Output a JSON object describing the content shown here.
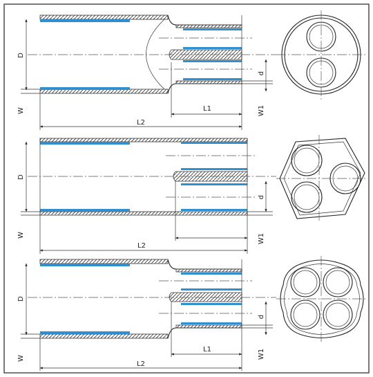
{
  "colors": {
    "liner": "#2f8fd0",
    "line": "#222222",
    "background": "#ffffff"
  },
  "rows": [
    {
      "name": "two-core",
      "labels": {
        "D": "D",
        "d": "d",
        "W": "W",
        "W1": "W1",
        "L1": "L1",
        "L2": "L2"
      }
    },
    {
      "name": "three-core",
      "labels": {
        "D": "D",
        "d": "d",
        "W": "W",
        "W1": "W1",
        "L1": "",
        "L2": "L2"
      }
    },
    {
      "name": "four-core",
      "labels": {
        "D": "D",
        "d": "d",
        "W": "W",
        "W1": "W1",
        "L1": "L1",
        "L2": "L2"
      }
    }
  ]
}
